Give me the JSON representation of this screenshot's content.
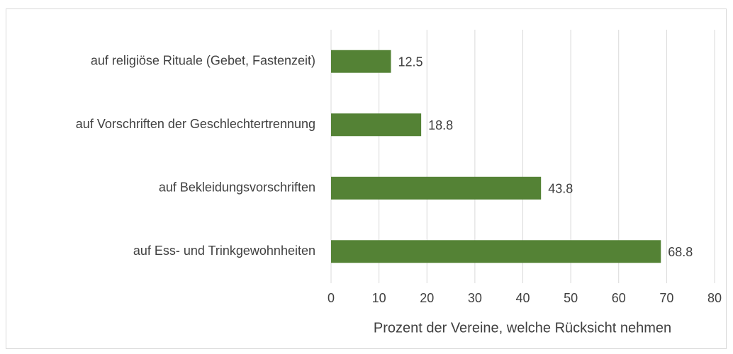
{
  "chart_data": {
    "type": "barh",
    "categories": [
      "auf religiöse Rituale (Gebet, Fastenzeit)",
      "auf Vorschriften der Geschlechtertrennung",
      "auf Bekleidungsvorschriften",
      "auf Ess- und Trinkgewohnheiten"
    ],
    "values": [
      12.5,
      18.8,
      43.8,
      68.8
    ],
    "color": "#548235",
    "xlabel": "Prozent der Vereine, welche Rücksicht nehmen",
    "xlim": [
      0,
      80
    ],
    "xticks": [
      0,
      10,
      20,
      30,
      40,
      50,
      60,
      70,
      80
    ],
    "grid": true
  }
}
